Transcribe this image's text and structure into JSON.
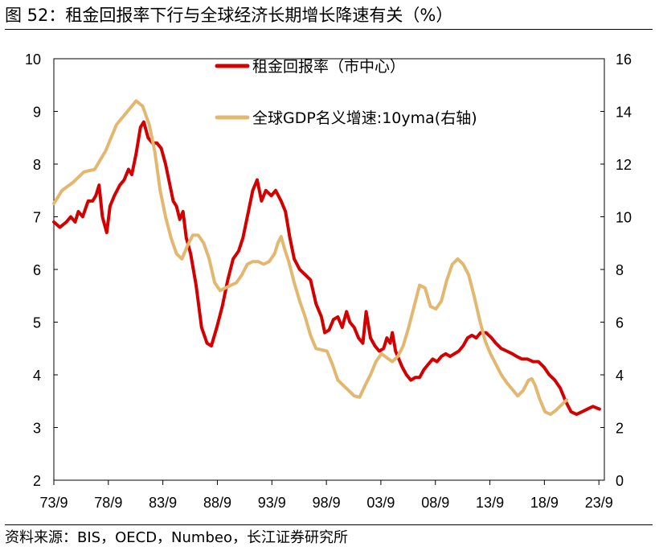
{
  "title": "图  52：租金回报率下行与全球经济长期增长降速有关（%）",
  "source": "资料来源：BIS，OECD，Numbeo，长江证券研究所",
  "chart_data": {
    "type": "line",
    "title": "租金回报率下行与全球经济长期增长降速有关（%）",
    "x_tick_labels": [
      "73/9",
      "78/9",
      "83/9",
      "88/9",
      "93/9",
      "98/9",
      "03/9",
      "08/9",
      "13/9",
      "18/9",
      "23/9"
    ],
    "x_tick_years": [
      1973.75,
      1978.75,
      1983.75,
      1988.75,
      1993.75,
      1998.75,
      2003.75,
      2008.75,
      2013.75,
      2018.75,
      2023.75
    ],
    "xlim": [
      1973.75,
      2024.25
    ],
    "y_left": {
      "ticks": [
        "2",
        "3",
        "4",
        "5",
        "6",
        "7",
        "8",
        "9",
        "10"
      ],
      "ylim": [
        2,
        10
      ]
    },
    "y_right": {
      "ticks": [
        "0",
        "2",
        "4",
        "6",
        "8",
        "10",
        "12",
        "14",
        "16"
      ],
      "ylim": [
        0,
        16
      ]
    },
    "legend_position": "top-center",
    "series": [
      {
        "name": "租金回报率（市中心）",
        "axis": "left",
        "color": "#D40000",
        "points": [
          [
            1973.75,
            6.9
          ],
          [
            1974.3,
            6.8
          ],
          [
            1974.9,
            6.9
          ],
          [
            1975.3,
            7.0
          ],
          [
            1975.7,
            6.9
          ],
          [
            1976.0,
            7.1
          ],
          [
            1976.4,
            7.0
          ],
          [
            1976.9,
            7.3
          ],
          [
            1977.3,
            7.3
          ],
          [
            1977.6,
            7.4
          ],
          [
            1977.9,
            7.6
          ],
          [
            1978.2,
            7.0
          ],
          [
            1978.6,
            6.7
          ],
          [
            1978.9,
            7.2
          ],
          [
            1979.3,
            7.4
          ],
          [
            1979.8,
            7.6
          ],
          [
            1980.2,
            7.7
          ],
          [
            1980.6,
            7.9
          ],
          [
            1980.9,
            7.8
          ],
          [
            1981.3,
            8.2
          ],
          [
            1981.7,
            8.7
          ],
          [
            1982.0,
            8.8
          ],
          [
            1982.4,
            8.5
          ],
          [
            1982.8,
            8.4
          ],
          [
            1983.2,
            8.4
          ],
          [
            1983.6,
            8.3
          ],
          [
            1984.0,
            8.0
          ],
          [
            1984.3,
            7.7
          ],
          [
            1984.7,
            7.3
          ],
          [
            1985.0,
            7.2
          ],
          [
            1985.3,
            6.95
          ],
          [
            1985.6,
            7.1
          ],
          [
            1985.9,
            6.6
          ],
          [
            1986.3,
            6.3
          ],
          [
            1986.8,
            5.7
          ],
          [
            1987.3,
            4.9
          ],
          [
            1987.8,
            4.6
          ],
          [
            1988.2,
            4.55
          ],
          [
            1988.7,
            4.9
          ],
          [
            1989.2,
            5.3
          ],
          [
            1989.7,
            5.8
          ],
          [
            1990.2,
            6.2
          ],
          [
            1990.7,
            6.35
          ],
          [
            1991.1,
            6.6
          ],
          [
            1991.6,
            7.1
          ],
          [
            1992.0,
            7.5
          ],
          [
            1992.4,
            7.7
          ],
          [
            1992.8,
            7.3
          ],
          [
            1993.2,
            7.5
          ],
          [
            1993.7,
            7.4
          ],
          [
            1994.1,
            7.5
          ],
          [
            1994.6,
            7.3
          ],
          [
            1995.0,
            7.1
          ],
          [
            1995.4,
            6.6
          ],
          [
            1995.8,
            6.2
          ],
          [
            1996.3,
            6.0
          ],
          [
            1996.8,
            5.9
          ],
          [
            1997.3,
            5.8
          ],
          [
            1997.8,
            5.35
          ],
          [
            1998.3,
            5.1
          ],
          [
            1998.6,
            4.8
          ],
          [
            1999.0,
            4.85
          ],
          [
            1999.4,
            5.05
          ],
          [
            1999.8,
            5.1
          ],
          [
            2000.2,
            4.9
          ],
          [
            2000.6,
            5.2
          ],
          [
            2000.9,
            5.0
          ],
          [
            2001.3,
            4.9
          ],
          [
            2001.7,
            4.7
          ],
          [
            2002.1,
            4.6
          ],
          [
            2002.4,
            5.2
          ],
          [
            2002.8,
            4.7
          ],
          [
            2003.2,
            4.55
          ],
          [
            2003.6,
            4.45
          ],
          [
            2004.0,
            4.5
          ],
          [
            2004.3,
            4.7
          ],
          [
            2004.6,
            4.6
          ],
          [
            2004.8,
            4.8
          ],
          [
            2005.1,
            4.45
          ],
          [
            2005.4,
            4.3
          ],
          [
            2005.7,
            4.15
          ],
          [
            2006.1,
            4.0
          ],
          [
            2006.5,
            3.9
          ],
          [
            2006.9,
            3.95
          ],
          [
            2007.3,
            3.95
          ],
          [
            2007.7,
            4.1
          ],
          [
            2008.1,
            4.2
          ],
          [
            2008.5,
            4.3
          ],
          [
            2008.9,
            4.25
          ],
          [
            2009.3,
            4.35
          ],
          [
            2009.7,
            4.4
          ],
          [
            2010.1,
            4.35
          ],
          [
            2010.5,
            4.4
          ],
          [
            2010.9,
            4.45
          ],
          [
            2011.3,
            4.55
          ],
          [
            2011.7,
            4.7
          ],
          [
            2012.1,
            4.75
          ],
          [
            2012.5,
            4.7
          ],
          [
            2012.9,
            4.8
          ],
          [
            2013.4,
            4.8
          ],
          [
            2013.9,
            4.7
          ],
          [
            2014.3,
            4.6
          ],
          [
            2014.8,
            4.5
          ],
          [
            2015.3,
            4.45
          ],
          [
            2015.8,
            4.4
          ],
          [
            2016.2,
            4.35
          ],
          [
            2016.7,
            4.3
          ],
          [
            2017.2,
            4.3
          ],
          [
            2017.7,
            4.25
          ],
          [
            2018.2,
            4.25
          ],
          [
            2018.7,
            4.15
          ],
          [
            2019.2,
            4.0
          ],
          [
            2019.7,
            3.9
          ],
          [
            2020.2,
            3.75
          ],
          [
            2020.7,
            3.5
          ],
          [
            2021.2,
            3.3
          ],
          [
            2021.7,
            3.25
          ],
          [
            2022.2,
            3.3
          ],
          [
            2022.7,
            3.35
          ],
          [
            2023.2,
            3.4
          ],
          [
            2023.8,
            3.35
          ]
        ]
      },
      {
        "name": "全球GDP名义增速:10yma(右轴)",
        "axis": "right",
        "color": "#E2B870",
        "points": [
          [
            1973.75,
            10.5
          ],
          [
            1974.5,
            11.0
          ],
          [
            1975.5,
            11.3
          ],
          [
            1976.5,
            11.7
          ],
          [
            1977.5,
            11.8
          ],
          [
            1978.5,
            12.5
          ],
          [
            1979.5,
            13.5
          ],
          [
            1980.5,
            14.0
          ],
          [
            1981.3,
            14.4
          ],
          [
            1981.9,
            14.2
          ],
          [
            1982.5,
            13.5
          ],
          [
            1983.0,
            12.5
          ],
          [
            1983.5,
            11.0
          ],
          [
            1984.0,
            10.0
          ],
          [
            1984.5,
            9.2
          ],
          [
            1985.0,
            8.6
          ],
          [
            1985.5,
            8.4
          ],
          [
            1986.0,
            8.9
          ],
          [
            1986.5,
            9.3
          ],
          [
            1987.0,
            9.3
          ],
          [
            1987.5,
            9.0
          ],
          [
            1988.0,
            8.4
          ],
          [
            1988.5,
            7.5
          ],
          [
            1989.0,
            7.2
          ],
          [
            1989.5,
            7.3
          ],
          [
            1990.0,
            7.4
          ],
          [
            1990.5,
            7.5
          ],
          [
            1991.0,
            7.8
          ],
          [
            1991.5,
            8.2
          ],
          [
            1992.0,
            8.3
          ],
          [
            1992.5,
            8.3
          ],
          [
            1993.0,
            8.2
          ],
          [
            1993.5,
            8.3
          ],
          [
            1994.0,
            8.6
          ],
          [
            1994.3,
            9.0
          ],
          [
            1994.6,
            9.25
          ],
          [
            1994.9,
            8.8
          ],
          [
            1995.3,
            8.3
          ],
          [
            1995.8,
            7.5
          ],
          [
            1996.3,
            6.8
          ],
          [
            1996.8,
            6.2
          ],
          [
            1997.3,
            5.5
          ],
          [
            1997.8,
            5.0
          ],
          [
            1998.3,
            4.95
          ],
          [
            1998.8,
            4.9
          ],
          [
            1999.3,
            4.4
          ],
          [
            1999.8,
            3.8
          ],
          [
            2000.3,
            3.6
          ],
          [
            2000.8,
            3.4
          ],
          [
            2001.3,
            3.2
          ],
          [
            2001.8,
            3.15
          ],
          [
            2002.3,
            3.6
          ],
          [
            2002.8,
            4.0
          ],
          [
            2003.3,
            4.5
          ],
          [
            2003.8,
            4.8
          ],
          [
            2004.3,
            4.65
          ],
          [
            2004.8,
            4.5
          ],
          [
            2005.3,
            4.7
          ],
          [
            2005.8,
            5.1
          ],
          [
            2006.3,
            5.8
          ],
          [
            2006.8,
            6.6
          ],
          [
            2007.3,
            7.4
          ],
          [
            2007.8,
            7.3
          ],
          [
            2008.3,
            6.6
          ],
          [
            2008.8,
            6.5
          ],
          [
            2009.3,
            6.8
          ],
          [
            2009.8,
            7.6
          ],
          [
            2010.3,
            8.2
          ],
          [
            2010.8,
            8.4
          ],
          [
            2011.3,
            8.2
          ],
          [
            2011.8,
            7.8
          ],
          [
            2012.3,
            7.0
          ],
          [
            2012.8,
            6.1
          ],
          [
            2013.3,
            5.3
          ],
          [
            2013.8,
            4.8
          ],
          [
            2014.3,
            4.4
          ],
          [
            2014.8,
            4.0
          ],
          [
            2015.3,
            3.7
          ],
          [
            2015.8,
            3.45
          ],
          [
            2016.3,
            3.2
          ],
          [
            2016.8,
            3.4
          ],
          [
            2017.3,
            3.8
          ],
          [
            2017.6,
            3.85
          ],
          [
            2017.9,
            3.6
          ],
          [
            2018.3,
            3.1
          ],
          [
            2018.8,
            2.6
          ],
          [
            2019.3,
            2.5
          ],
          [
            2019.8,
            2.65
          ],
          [
            2020.3,
            2.85
          ],
          [
            2020.8,
            3.05
          ]
        ]
      }
    ]
  }
}
